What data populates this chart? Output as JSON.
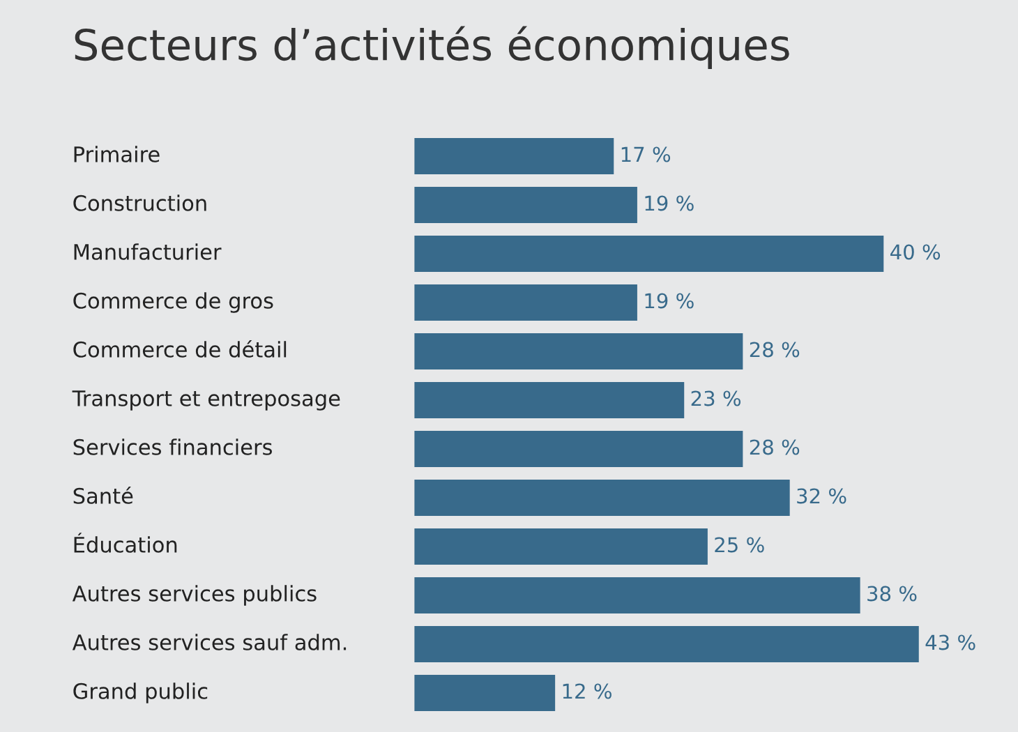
{
  "chart_data": {
    "type": "bar",
    "orientation": "horizontal",
    "title": "Secteurs d’activités économiques",
    "categories": [
      "Primaire",
      "Construction",
      "Manufacturier",
      "Commerce de gros",
      "Commerce de détail",
      "Transport et entreposage",
      "Services financiers",
      "Santé",
      "Éducation",
      "Autres services publics",
      "Autres services sauf adm.",
      "Grand public"
    ],
    "values": [
      17,
      19,
      40,
      19,
      28,
      23,
      28,
      32,
      25,
      38,
      43,
      12
    ],
    "value_labels": [
      "17 %",
      "19 %",
      "40 %",
      "19 %",
      "28 %",
      "23 %",
      "28 %",
      "32 %",
      "25 %",
      "38 %",
      "43 %",
      "12 %"
    ],
    "color": "#386a8b"
  }
}
